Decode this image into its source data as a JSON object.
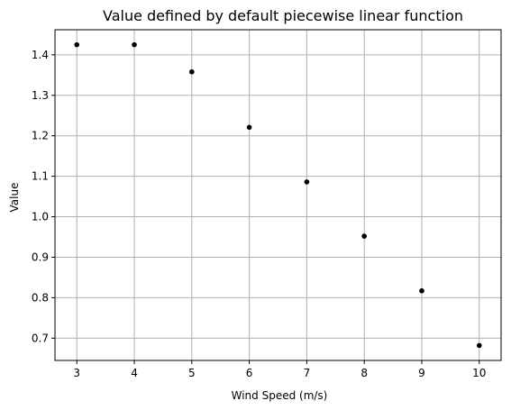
{
  "chart_data": {
    "type": "scatter",
    "title": "Value defined by default piecewise linear function",
    "xlabel": "Wind Speed (m/s)",
    "ylabel": "Value",
    "xlim": [
      2.62,
      10.38
    ],
    "ylim": [
      0.645,
      1.462
    ],
    "xticks": [
      3,
      4,
      5,
      6,
      7,
      8,
      9,
      10
    ],
    "yticks": [
      0.7,
      0.8,
      0.9,
      1.0,
      1.1,
      1.2,
      1.3,
      1.4
    ],
    "xtick_labels": [
      "3",
      "4",
      "5",
      "6",
      "7",
      "8",
      "9",
      "10"
    ],
    "ytick_labels": [
      "0.7",
      "0.8",
      "0.9",
      "1.0",
      "1.1",
      "1.2",
      "1.3",
      "1.4"
    ],
    "grid": true,
    "marker_color": "#000000",
    "grid_color": "#b0b0b0",
    "series": [
      {
        "x": [
          3,
          4,
          5,
          6,
          7,
          8,
          9,
          10
        ],
        "y": [
          1.425,
          1.425,
          1.358,
          1.221,
          1.086,
          0.952,
          0.817,
          0.682
        ]
      }
    ]
  }
}
